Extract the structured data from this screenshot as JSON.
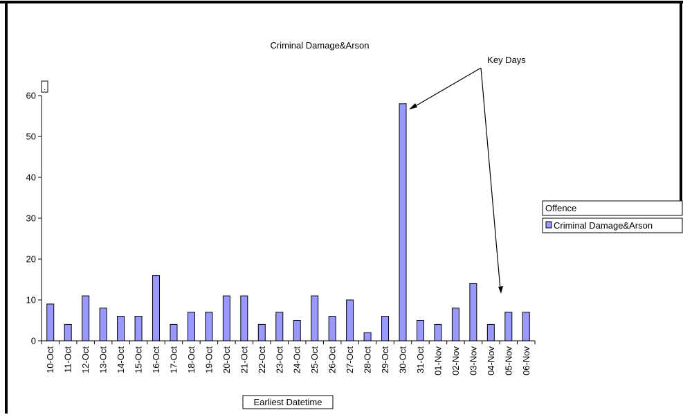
{
  "colors": {
    "bar_fill": "#9999ff",
    "bar_stroke": "#000000",
    "frame": "#000000",
    "background": "#ffffff"
  },
  "chart_data": {
    "type": "bar",
    "title": "Criminal Damage&Arson",
    "xlabel": "Earliest Datetime",
    "ylabel": ".",
    "ylim": [
      0,
      60
    ],
    "yticks": [
      0,
      10,
      20,
      30,
      40,
      50,
      60
    ],
    "grid": false,
    "legend_position": "right",
    "legend_title": "Offence",
    "categories": [
      "10-Oct",
      "11-Oct",
      "12-Oct",
      "13-Oct",
      "14-Oct",
      "15-Oct",
      "16-Oct",
      "17-Oct",
      "18-Oct",
      "19-Oct",
      "20-Oct",
      "21-Oct",
      "22-Oct",
      "23-Oct",
      "24-Oct",
      "25-Oct",
      "26-Oct",
      "27-Oct",
      "28-Oct",
      "29-Oct",
      "30-Oct",
      "31-Oct",
      "01-Nov",
      "02-Nov",
      "03-Nov",
      "04-Nov",
      "05-Nov",
      "06-Nov"
    ],
    "series": [
      {
        "name": "Criminal Damage&Arson",
        "values": [
          9,
          4,
          11,
          8,
          6,
          6,
          16,
          4,
          7,
          7,
          11,
          11,
          4,
          7,
          5,
          11,
          6,
          10,
          2,
          6,
          58,
          5,
          4,
          8,
          14,
          4,
          7,
          7
        ]
      }
    ],
    "annotations": [
      {
        "text": "Key Days",
        "targets": [
          "30-Oct",
          "05-Nov"
        ]
      }
    ]
  }
}
